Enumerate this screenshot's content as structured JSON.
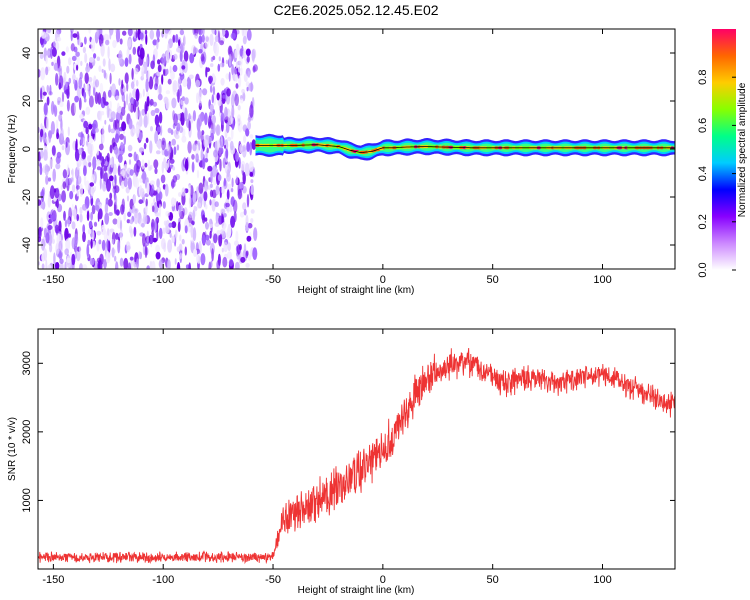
{
  "title": "C2E6.2025.052.12.45.E02",
  "chart_data": [
    {
      "type": "heatmap",
      "xlabel": "Height of straight line (km)",
      "ylabel": "Frequency (Hz)",
      "xlim": [
        -157,
        133
      ],
      "ylim": [
        -50,
        50
      ],
      "xticks": [
        -150,
        -100,
        -50,
        0,
        50,
        100
      ],
      "yticks": [
        -40,
        -20,
        0,
        20,
        40
      ],
      "noise_region_x": [
        -157,
        -58
      ],
      "signal_start_x": -58,
      "signal_track": {
        "x": [
          -58,
          -50,
          -40,
          -30,
          -20,
          -15,
          -10,
          -5,
          0,
          5,
          10,
          20,
          40,
          60,
          80,
          100,
          120,
          133
        ],
        "freq": [
          1.5,
          1.5,
          1.5,
          1.8,
          1.0,
          -0.5,
          -1.5,
          -1.0,
          0.5,
          0.5,
          0.8,
          1.0,
          0.5,
          0.5,
          0.5,
          0.5,
          0.5,
          0.5
        ]
      },
      "colorbar": {
        "label": "Normalized spectral amplitude",
        "range": [
          0,
          1
        ],
        "ticks": [
          "0.0",
          "0.2",
          "0.4",
          "0.6",
          "0.8"
        ],
        "colors": [
          "#ffffff",
          "#cc88ff",
          "#8800ff",
          "#0000ff",
          "#00ccff",
          "#00ff88",
          "#88ff00",
          "#ffcc00",
          "#ff6600",
          "#ff0066"
        ]
      },
      "grid": false
    },
    {
      "type": "line",
      "xlabel": "Height of straight line (km)",
      "ylabel": "SNR (10 * v/v)",
      "xlim": [
        -157,
        133
      ],
      "ylim": [
        0,
        3500
      ],
      "xticks": [
        -150,
        -100,
        -50,
        0,
        50,
        100
      ],
      "yticks": [
        1000,
        2000,
        3000
      ],
      "color": "#ee3333",
      "envelope": {
        "x": [
          -157,
          -60,
          -52,
          -50,
          -45,
          -40,
          -30,
          -20,
          -10,
          0,
          5,
          10,
          15,
          20,
          30,
          38,
          45,
          55,
          60,
          70,
          80,
          90,
          100,
          105,
          110,
          120,
          130,
          133
        ],
        "y": [
          170,
          170,
          170,
          180,
          720,
          780,
          1000,
          1200,
          1450,
          1750,
          1900,
          2250,
          2550,
          2800,
          2950,
          3050,
          2900,
          2700,
          2750,
          2800,
          2700,
          2800,
          2850,
          2800,
          2700,
          2550,
          2400,
          2450
        ]
      },
      "noise_amplitude": {
        "x": [
          -157,
          -50,
          -45,
          0,
          15,
          40,
          133
        ],
        "y": [
          90,
          90,
          330,
          380,
          330,
          230,
          210
        ]
      },
      "grid": false
    }
  ]
}
